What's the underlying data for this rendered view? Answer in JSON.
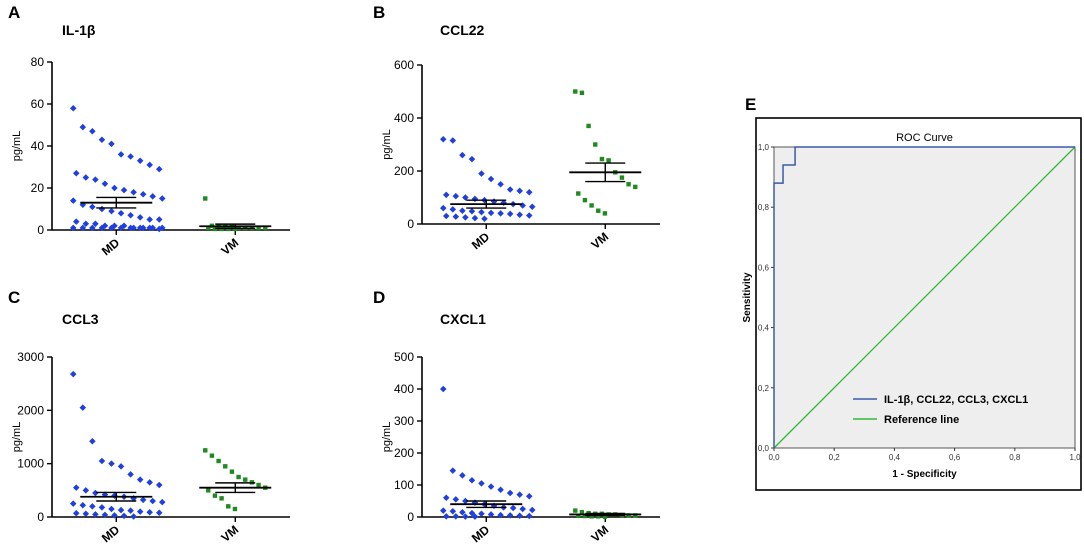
{
  "figure": {
    "colors": {
      "md": "#1f3fe0",
      "vm": "#1f8a1f",
      "roc_curve": "#3a5ba8",
      "reference": "#33b833",
      "roc_bg": "#eeeeee"
    }
  },
  "chart_data": [
    {
      "id": "A",
      "letter": "A",
      "type": "scatter",
      "title": "IL-1β",
      "ylabel": "pg/mL",
      "ylim": [
        0,
        80
      ],
      "yticks": [
        0,
        20,
        40,
        60,
        80
      ],
      "tick_labels": [
        "0",
        "20",
        "40",
        "60",
        "80"
      ],
      "categories": [
        "MD",
        "VM"
      ],
      "series": [
        {
          "name": "MD",
          "mean": 13,
          "sem_low": 10.5,
          "sem_high": 15.5,
          "values": [
            58,
            49,
            47,
            43,
            41,
            36,
            35,
            33,
            31,
            29,
            27,
            25,
            24,
            22,
            20,
            19,
            18,
            17,
            16,
            15,
            14,
            12,
            11,
            10,
            9,
            8,
            7,
            6,
            5,
            5,
            4,
            3,
            3,
            2,
            2,
            2,
            1,
            1,
            1,
            1,
            1,
            1,
            1,
            1,
            1,
            1,
            1,
            1,
            1,
            0.5
          ]
        },
        {
          "name": "VM",
          "mean": 1.8,
          "sem_low": 0.8,
          "sem_high": 2.8,
          "values": [
            15,
            2,
            2,
            1.5,
            1.5,
            1,
            1,
            1,
            1,
            1,
            1,
            0.5,
            0.5,
            0.5,
            0.5
          ]
        }
      ]
    },
    {
      "id": "B",
      "letter": "B",
      "type": "scatter",
      "title": "CCL22",
      "ylabel": "pg/mL",
      "ylim": [
        0,
        600
      ],
      "yticks": [
        0,
        200,
        400,
        600
      ],
      "tick_labels": [
        "0",
        "200",
        "400",
        "600"
      ],
      "categories": [
        "MD",
        "VM"
      ],
      "series": [
        {
          "name": "MD",
          "mean": 75,
          "sem_low": 60,
          "sem_high": 90,
          "values": [
            320,
            315,
            260,
            245,
            190,
            170,
            150,
            130,
            125,
            120,
            110,
            105,
            100,
            95,
            90,
            85,
            80,
            75,
            70,
            65,
            60,
            55,
            50,
            48,
            45,
            42,
            40,
            38,
            35,
            32,
            30,
            28,
            25,
            22,
            20
          ]
        },
        {
          "name": "VM",
          "mean": 195,
          "sem_low": 160,
          "sem_high": 230,
          "values": [
            500,
            495,
            370,
            300,
            245,
            240,
            195,
            175,
            150,
            140,
            115,
            90,
            70,
            50,
            40
          ]
        }
      ]
    },
    {
      "id": "C",
      "letter": "C",
      "type": "scatter",
      "title": "CCL3",
      "ylabel": "pg/mL",
      "ylim": [
        0,
        3000
      ],
      "yticks": [
        0,
        1000,
        2000,
        3000
      ],
      "tick_labels": [
        "0",
        "1000",
        "2000",
        "3000"
      ],
      "categories": [
        "MD",
        "VM"
      ],
      "series": [
        {
          "name": "MD",
          "mean": 380,
          "sem_low": 300,
          "sem_high": 460,
          "values": [
            2680,
            2050,
            1420,
            1050,
            1000,
            950,
            800,
            700,
            650,
            600,
            550,
            500,
            450,
            420,
            400,
            380,
            350,
            320,
            300,
            280,
            250,
            220,
            200,
            180,
            150,
            130,
            120,
            100,
            90,
            80,
            70,
            60,
            50,
            40,
            30,
            20,
            10
          ]
        },
        {
          "name": "VM",
          "mean": 550,
          "sem_low": 460,
          "sem_high": 640,
          "values": [
            1250,
            1150,
            1050,
            950,
            850,
            750,
            700,
            650,
            600,
            550,
            500,
            400,
            350,
            200,
            150
          ]
        }
      ]
    },
    {
      "id": "D",
      "letter": "D",
      "type": "scatter",
      "title": "CXCL1",
      "ylabel": "pg/mL",
      "ylim": [
        0,
        500
      ],
      "yticks": [
        0,
        100,
        200,
        300,
        400,
        500
      ],
      "tick_labels": [
        "0",
        "100",
        "200",
        "300",
        "400",
        "500"
      ],
      "categories": [
        "MD",
        "VM"
      ],
      "series": [
        {
          "name": "MD",
          "mean": 40,
          "sem_low": 30,
          "sem_high": 50,
          "values": [
            400,
            145,
            130,
            115,
            105,
            95,
            85,
            75,
            70,
            65,
            60,
            55,
            50,
            45,
            40,
            35,
            30,
            28,
            25,
            22,
            20,
            18,
            15,
            12,
            10,
            8,
            6,
            5,
            4,
            3,
            2,
            2,
            1,
            1
          ]
        },
        {
          "name": "VM",
          "mean": 8,
          "sem_low": 5,
          "sem_high": 11,
          "values": [
            20,
            15,
            12,
            10,
            10,
            8,
            8,
            6,
            5,
            5,
            4,
            3,
            2,
            2,
            1
          ]
        }
      ]
    },
    {
      "id": "E",
      "letter": "E",
      "type": "line",
      "title": "ROC Curve",
      "xlabel": "1 - Specificity",
      "ylabel": "Sensitivity",
      "xlim": [
        0,
        1
      ],
      "ylim": [
        0,
        1
      ],
      "ticks": [
        0,
        0.2,
        0.4,
        0.6,
        0.8,
        1.0
      ],
      "tick_labels": [
        "0,0",
        "0,2",
        "0,4",
        "0,6",
        "0,8",
        "1,0"
      ],
      "legend_position": "bottom-left",
      "series": [
        {
          "name": "IL-1β, CCL22, CCL3, CXCL1",
          "x": [
            0,
            0,
            0.03,
            0.03,
            0.07,
            0.07,
            1
          ],
          "y": [
            0,
            0.88,
            0.88,
            0.94,
            0.94,
            1.0,
            1.0
          ]
        },
        {
          "name": "Reference line",
          "x": [
            0,
            1
          ],
          "y": [
            0,
            1
          ]
        }
      ]
    }
  ]
}
